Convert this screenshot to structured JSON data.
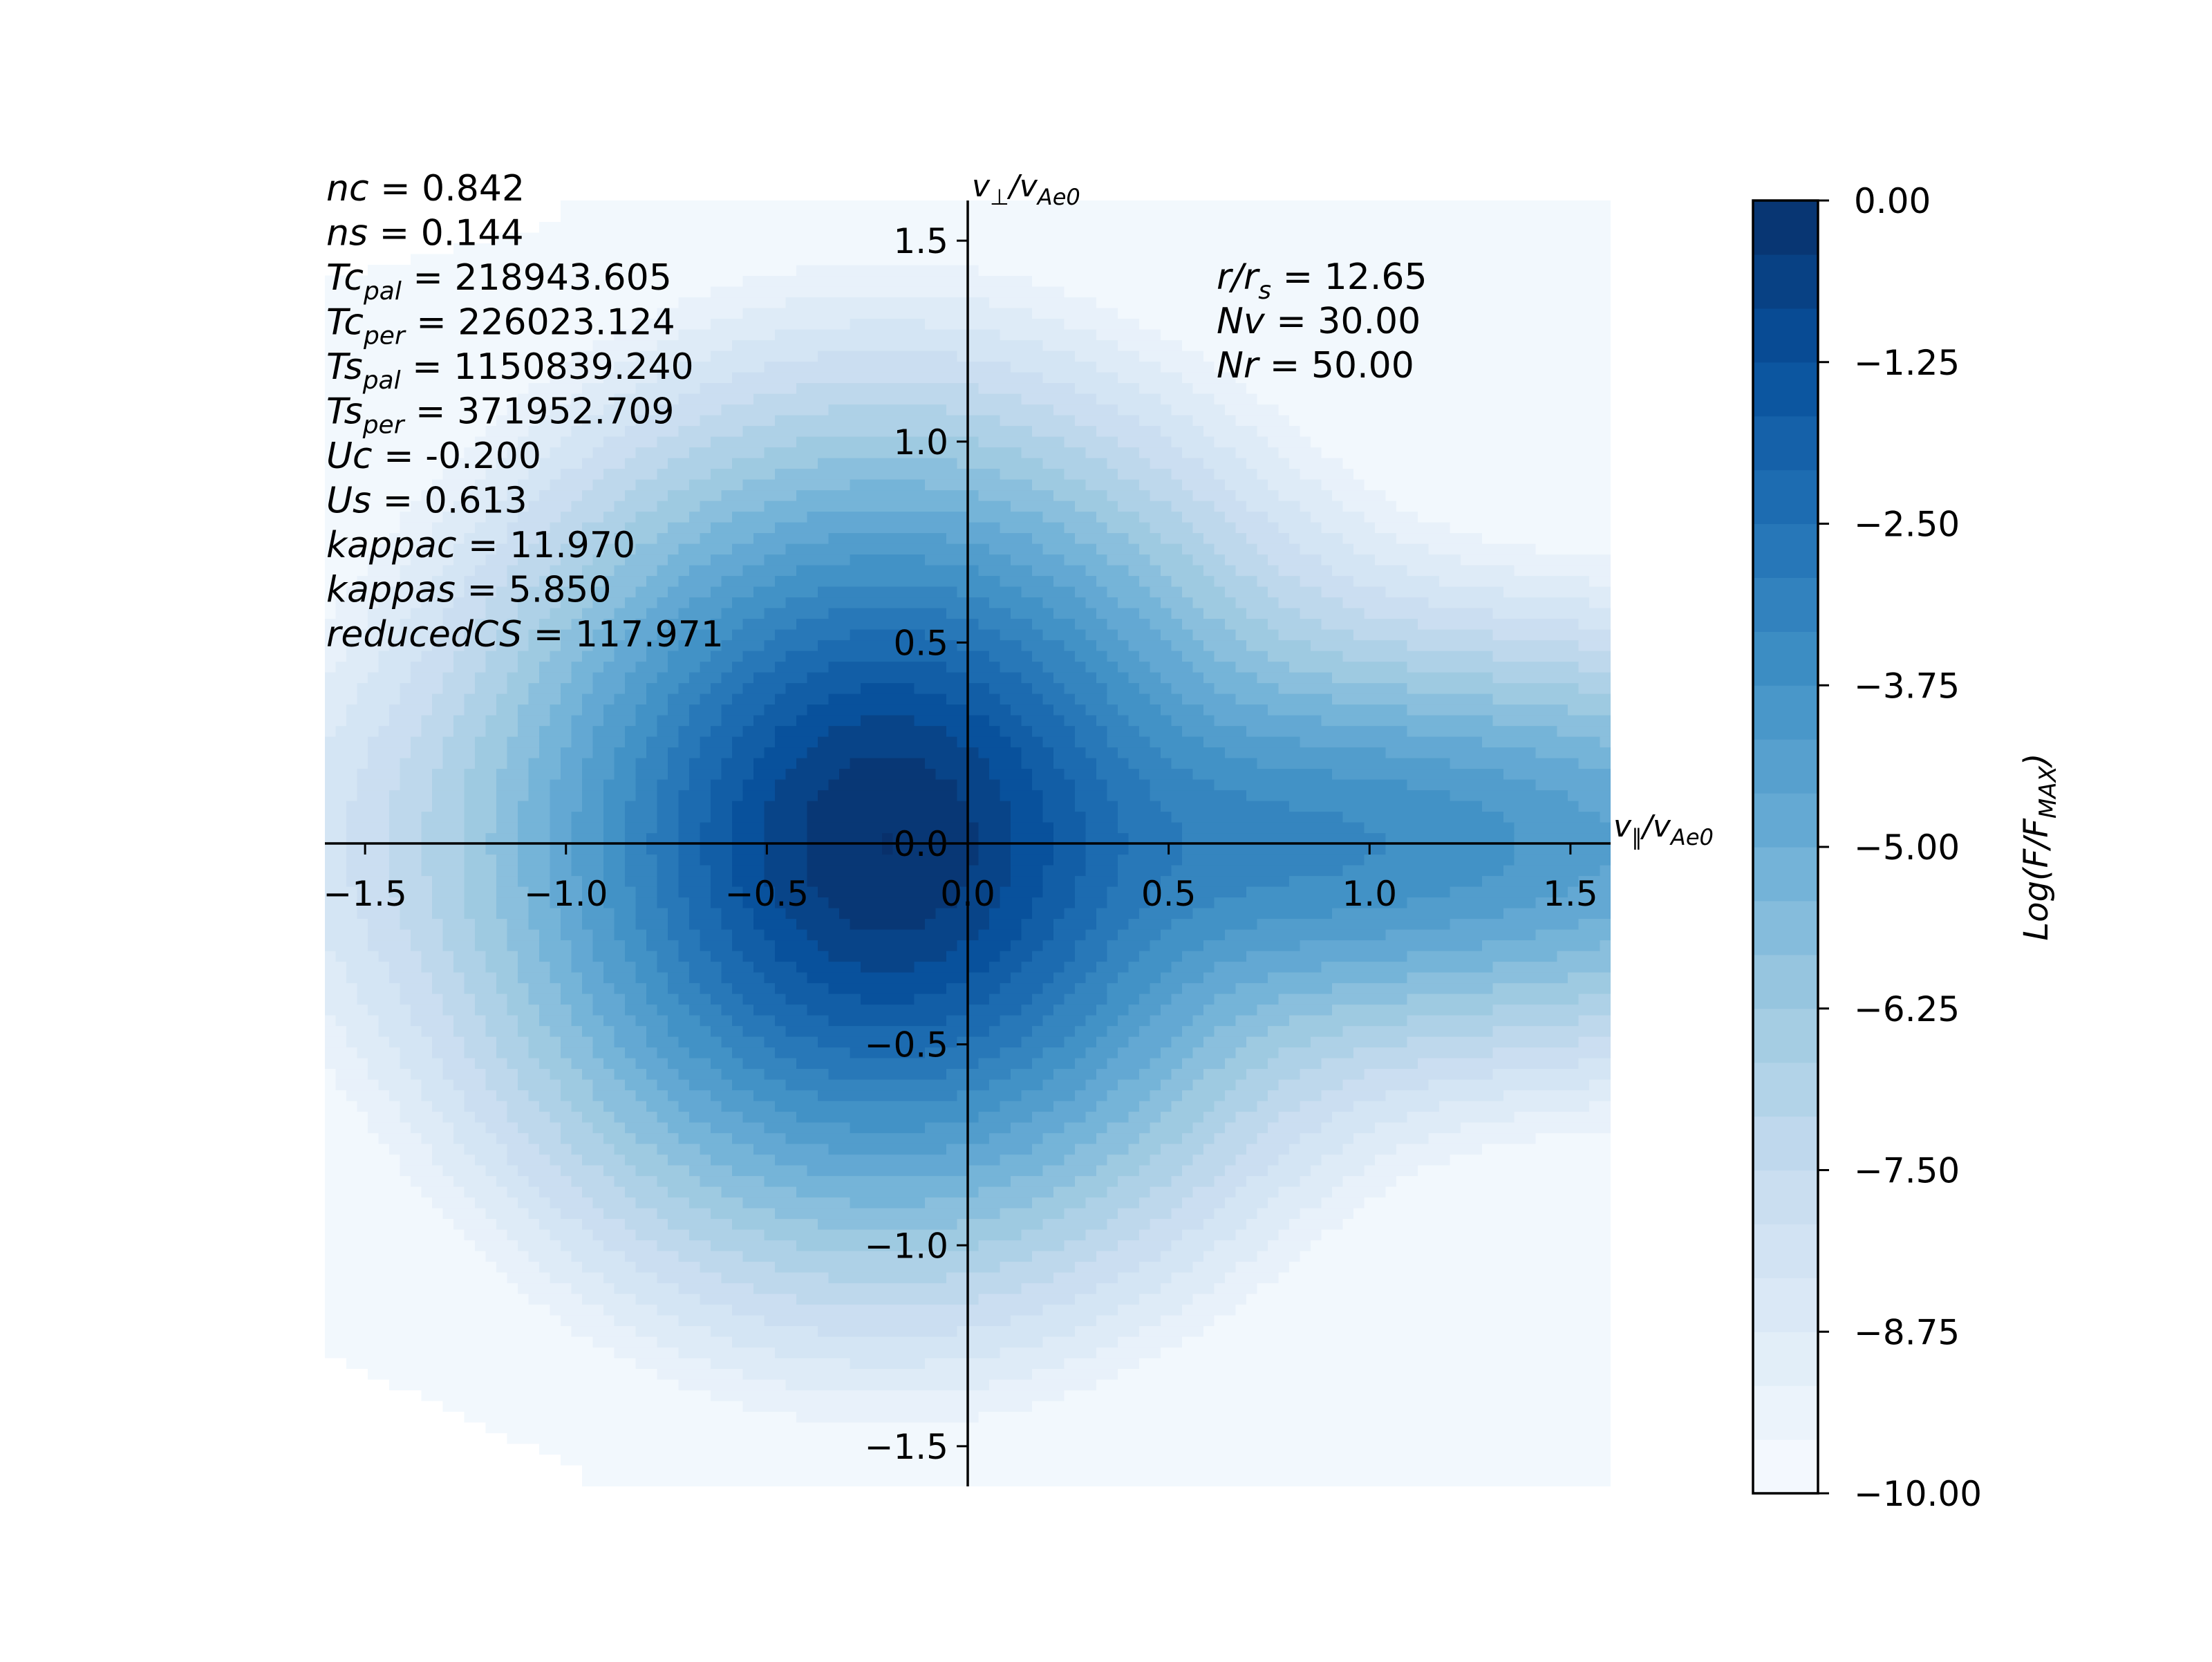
{
  "chart_data": {
    "type": "heatmap",
    "subtype": "filled-contour",
    "colormap": "Blues",
    "xlabel_main": "v",
    "xlabel_sub": "∥",
    "xlabel_den": "/v",
    "xlabel_den_sub": "Ae0",
    "ylabel_main": "v",
    "ylabel_sub": "⊥",
    "ylabel_den": "/v",
    "ylabel_den_sub": "Ae0",
    "xlim": [
      -1.6,
      1.6
    ],
    "ylim": [
      -1.6,
      1.6
    ],
    "xticks": [
      "−1.5",
      "−1.0",
      "−0.5",
      "0.0",
      "0.5",
      "1.0",
      "1.5"
    ],
    "xtick_values": [
      -1.5,
      -1.0,
      -0.5,
      0.0,
      0.5,
      1.0,
      1.5
    ],
    "yticks": [
      "−1.5",
      "−1.0",
      "−0.5",
      "0.0",
      "0.5",
      "1.0",
      "1.5"
    ],
    "ytick_values": [
      -1.5,
      -1.0,
      -0.5,
      0.0,
      0.5,
      1.0,
      1.5
    ],
    "core": {
      "center": [
        -0.2,
        0.0
      ],
      "tcpal": 218943.605,
      "tcper": 226023.124,
      "kappa": 11.97,
      "drift": -0.2,
      "density": 0.842
    },
    "strahl": {
      "drift": 0.613,
      "tspal": 1150839.24,
      "tsper": 371952.709,
      "kappa": 5.85,
      "density": 0.144
    },
    "contour_levels": [
      0.0,
      -0.5,
      -1.0,
      -1.5,
      -2.0,
      -2.5,
      -3.0,
      -3.5,
      -4.0,
      -4.5,
      -5.0,
      -5.5,
      -6.0,
      -6.5,
      -7.0,
      -7.5,
      -8.0,
      -8.5,
      -9.0,
      -9.5,
      -10.0
    ],
    "params": [
      {
        "name": "nc",
        "sub": "",
        "value": "0.842"
      },
      {
        "name": "ns",
        "sub": "",
        "value": "0.144"
      },
      {
        "name": "Tc",
        "sub": "pal",
        "value": "218943.605"
      },
      {
        "name": "Tc",
        "sub": "per",
        "value": "226023.124"
      },
      {
        "name": "Ts",
        "sub": "pal",
        "value": "1150839.240"
      },
      {
        "name": "Ts",
        "sub": "per",
        "value": "371952.709"
      },
      {
        "name": "Uc",
        "sub": "",
        "value": "-0.200"
      },
      {
        "name": "Us",
        "sub": "",
        "value": "0.613"
      },
      {
        "name": "kappac",
        "sub": "",
        "value": "11.970"
      },
      {
        "name": "kappas",
        "sub": "",
        "value": "5.850"
      },
      {
        "name": "reducedCS",
        "sub": "",
        "value": "117.971"
      }
    ],
    "info": [
      {
        "name": "r/r",
        "sub": "s",
        "value": "12.65"
      },
      {
        "name": "Nv",
        "sub": "",
        "value": "30.00"
      },
      {
        "name": "Nr",
        "sub": "",
        "value": "50.00"
      }
    ],
    "colorbar": {
      "label_main": "Log(F/F",
      "label_sub": "MAX",
      "label_end": ")",
      "range": [
        -10.0,
        0.0
      ],
      "ticks": [
        "0.00",
        "−1.25",
        "−2.50",
        "−3.75",
        "−5.00",
        "−6.25",
        "−7.50",
        "−8.75",
        "−10.00"
      ],
      "tick_values": [
        0.0,
        -1.25,
        -2.5,
        -3.75,
        -5.0,
        -6.25,
        -7.5,
        -8.75,
        -10.0
      ],
      "band_count": 24
    },
    "grid": false
  }
}
